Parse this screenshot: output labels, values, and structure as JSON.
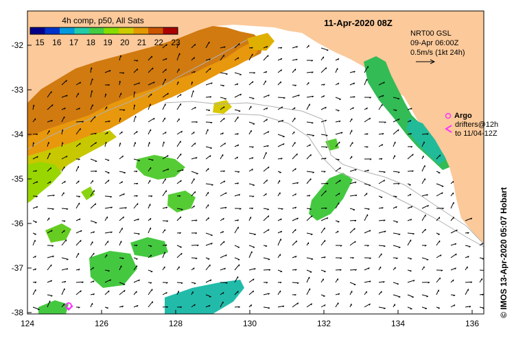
{
  "colorbar": {
    "title": "4h comp, p50, All Sats",
    "labels": [
      "15",
      "16",
      "17",
      "18",
      "19",
      "20",
      "21",
      "22",
      "23"
    ],
    "colors": [
      "#00008b",
      "#0033cc",
      "#0099dd",
      "#22ccaa",
      "#44cc44",
      "#88dd00",
      "#cccc00",
      "#e39a00",
      "#cc5500",
      "#aa0000"
    ]
  },
  "header": {
    "date": "11-Apr-2020 08Z"
  },
  "info": {
    "line1": "NRT00 GSL",
    "line2": "09-Apr 06:00Z",
    "line3": "0.5m/s (1kt 24h)"
  },
  "legend": {
    "argo_label": "Argo",
    "drifters_line1": "drifters@12h",
    "drifters_line2": "to 11/04-12Z"
  },
  "side_label": "© IMOS 13-Apr-2020 05:07 Hobart",
  "axes": {
    "x_ticks": [
      "124",
      "126",
      "128",
      "130",
      "132",
      "134",
      "136"
    ],
    "y_ticks": [
      "-32",
      "-33",
      "-34",
      "-35",
      "-36",
      "-37",
      "-38"
    ]
  },
  "colors": {
    "land": "#fbc99a",
    "ocean": "#ffffff",
    "argo": "#ff33ff",
    "bathymetry": "#b0b0b0"
  }
}
